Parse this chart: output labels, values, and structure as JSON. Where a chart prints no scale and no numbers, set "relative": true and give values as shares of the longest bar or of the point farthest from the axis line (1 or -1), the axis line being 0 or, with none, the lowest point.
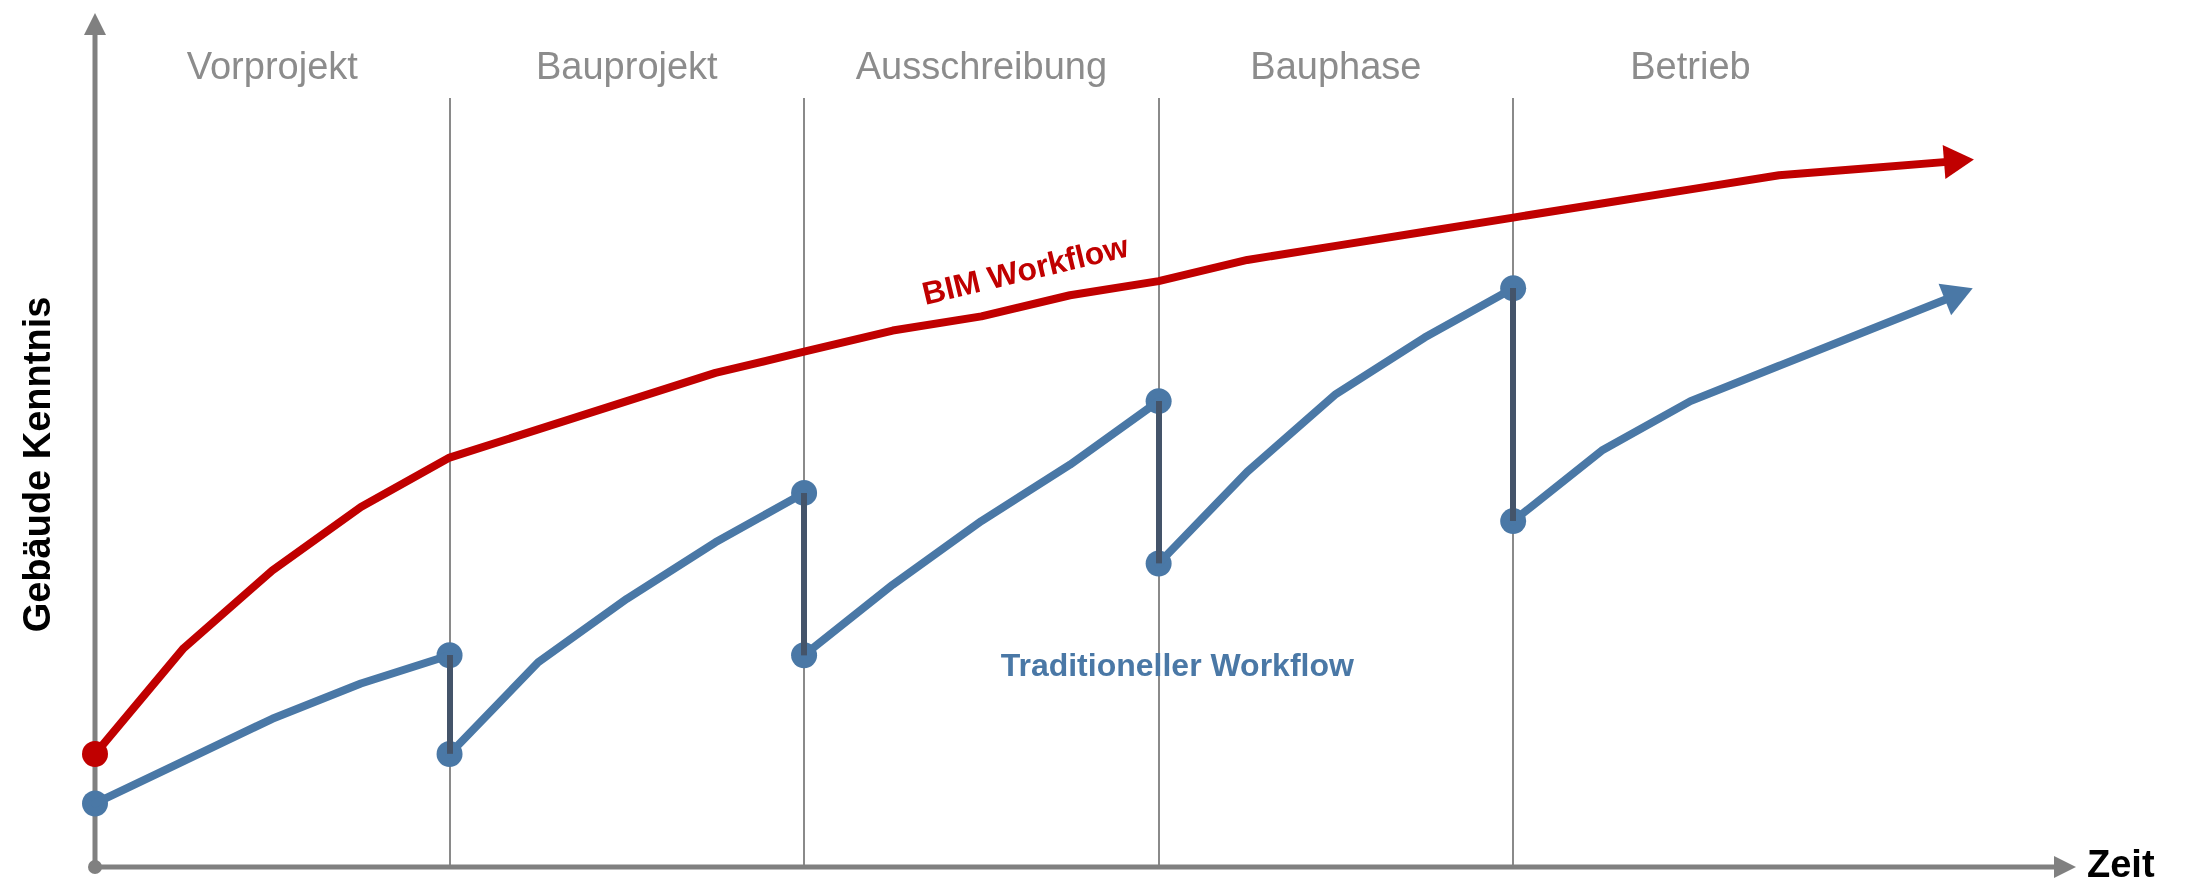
{
  "chart_data": {
    "type": "line",
    "relative": true,
    "xlabel": "Zeit",
    "ylabel": "Gebäude Kenntnis",
    "legend": false,
    "marker": "none",
    "grid": "x",
    "categories": [
      null,
      null,
      null,
      null,
      "Vorprojekt",
      null,
      null,
      null,
      null,
      null,
      null,
      null,
      "Bauprojekt",
      null,
      null,
      null,
      null,
      null,
      null,
      null,
      "Ausschreibung",
      null,
      null,
      null,
      null,
      null,
      null,
      null,
      "Bauphase",
      null,
      null,
      null,
      null,
      null,
      null,
      null,
      "Betrieb",
      null,
      null,
      null,
      null,
      null,
      null,
      null,
      null
    ],
    "series": [
      {
        "name": "BIM Workflow",
        "color": "#c00000",
        "values": [
          0.16,
          null,
          0.31,
          null,
          0.42,
          null,
          0.51,
          null,
          0.58,
          null,
          0.62,
          null,
          0.66,
          null,
          0.7,
          null,
          0.73,
          null,
          0.76,
          null,
          0.78,
          null,
          0.81,
          null,
          0.83,
          null,
          0.86,
          null,
          0.88,
          null,
          0.9,
          null,
          0.92,
          null,
          0.94,
          null,
          0.96,
          null,
          0.98,
          null,
          0.99,
          null,
          1,
          null,
          null
        ]
      },
      {
        "name": "Traditioneller Workflow",
        "color": "#4a78a6",
        "values": [
          0.09,
          null,
          0.15,
          null,
          0.21,
          null,
          0.26,
          null,
          0.3,
          null,
          null,
          null,
          null,
          null,
          null,
          null,
          null,
          null,
          null,
          null,
          null,
          null,
          null,
          null,
          null,
          null,
          null,
          null,
          null,
          null,
          null,
          null,
          null,
          null,
          null,
          null,
          null,
          null,
          null,
          null,
          null,
          null,
          null,
          null,
          null
        ]
      },
      {
        "color": "#4a78a6",
        "values": [
          null,
          null,
          null,
          null,
          null,
          null,
          null,
          null,
          0.16,
          null,
          0.29,
          null,
          0.38,
          null,
          0.46,
          null,
          0.53,
          null,
          null,
          null,
          null,
          null,
          null,
          null,
          null,
          null,
          null,
          null,
          null,
          null,
          null,
          null,
          null,
          null,
          null,
          null,
          null,
          null,
          null,
          null,
          null,
          null,
          null,
          null,
          null
        ]
      },
      {
        "color": "#4a78a6",
        "values": [
          null,
          null,
          null,
          null,
          null,
          null,
          null,
          null,
          null,
          null,
          null,
          null,
          null,
          null,
          null,
          null,
          0.3,
          null,
          0.4,
          null,
          0.49,
          null,
          0.57,
          null,
          0.66,
          null,
          null,
          null,
          null,
          null,
          null,
          null,
          null,
          null,
          null,
          null,
          null,
          null,
          null,
          null,
          null,
          null,
          null,
          null,
          null
        ]
      },
      {
        "color": "#4a78a6",
        "values": [
          null,
          null,
          null,
          null,
          null,
          null,
          null,
          null,
          null,
          null,
          null,
          null,
          null,
          null,
          null,
          null,
          null,
          null,
          null,
          null,
          null,
          null,
          null,
          null,
          0.43,
          null,
          0.56,
          null,
          0.67,
          null,
          0.75,
          null,
          0.82,
          null,
          null,
          null,
          null,
          null,
          null,
          null,
          null,
          null,
          null,
          null,
          null
        ]
      },
      {
        "color": "#4a78a6",
        "values": [
          null,
          null,
          null,
          null,
          null,
          null,
          null,
          null,
          null,
          null,
          null,
          null,
          null,
          null,
          null,
          null,
          null,
          null,
          null,
          null,
          null,
          null,
          null,
          null,
          null,
          null,
          null,
          null,
          null,
          null,
          null,
          null,
          0.49,
          null,
          0.59,
          null,
          0.66,
          null,
          0.71,
          null,
          0.76,
          null,
          0.81,
          null,
          null
        ]
      },
      {
        "type": "scatter",
        "marker": "circle",
        "color": "#c00000",
        "values": [
          0.16,
          null,
          null,
          null,
          null,
          null,
          null,
          null,
          null,
          null,
          null,
          null,
          null,
          null,
          null,
          null,
          null,
          null,
          null,
          null,
          null,
          null,
          null,
          null,
          null,
          null,
          null,
          null,
          null,
          null,
          null,
          null,
          null,
          null,
          null,
          null,
          null,
          null,
          null,
          null,
          null,
          null,
          null,
          null,
          null
        ]
      },
      {
        "type": "scatter",
        "marker": "circle",
        "color": "#4a78a6",
        "values": [
          0.09,
          null,
          null,
          null,
          null,
          null,
          null,
          null,
          0.16,
          null,
          null,
          null,
          null,
          null,
          null,
          null,
          0.3,
          null,
          null,
          null,
          null,
          null,
          null,
          null,
          0.43,
          null,
          null,
          null,
          null,
          null,
          null,
          null,
          0.49,
          null,
          null,
          null,
          null,
          null,
          null,
          null,
          null,
          null,
          null,
          null,
          null
        ]
      },
      {
        "type": "scatter",
        "marker": "circle",
        "color": "#4a78a6",
        "values": [
          null,
          null,
          null,
          null,
          null,
          null,
          null,
          null,
          0.3,
          null,
          null,
          null,
          null,
          null,
          null,
          null,
          0.53,
          null,
          null,
          null,
          null,
          null,
          null,
          null,
          0.66,
          null,
          null,
          null,
          null,
          null,
          null,
          null,
          0.82,
          null,
          null,
          null,
          null,
          null,
          null,
          null,
          null,
          null,
          null,
          null,
          null
        ]
      }
    ]
  }
}
